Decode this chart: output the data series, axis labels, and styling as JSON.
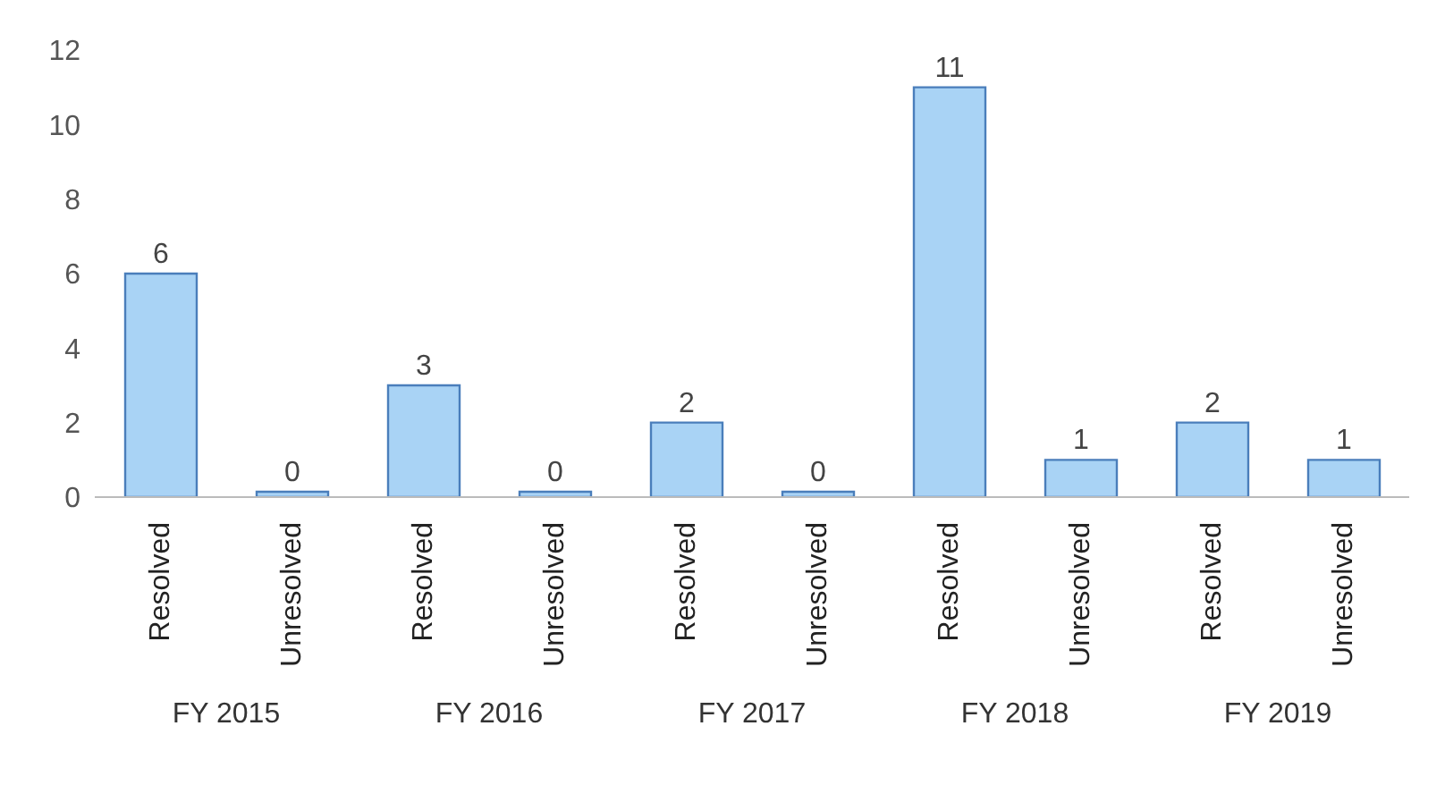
{
  "chart_data": {
    "type": "bar",
    "categories": [
      "Resolved",
      "Unresolved",
      "Resolved",
      "Unresolved",
      "Resolved",
      "Unresolved",
      "Resolved",
      "Unresolved",
      "Resolved",
      "Unresolved"
    ],
    "values": [
      6,
      0,
      3,
      0,
      2,
      0,
      11,
      1,
      2,
      1
    ],
    "color": "#a9d3f5",
    "ylim": [
      0,
      12
    ],
    "yticks": [
      0,
      2,
      4,
      6,
      8,
      10,
      12
    ],
    "data_labels": true,
    "annotations": [
      "FY 2015",
      "FY 2016",
      "FY 2017",
      "FY 2018",
      "FY 2019"
    ]
  }
}
